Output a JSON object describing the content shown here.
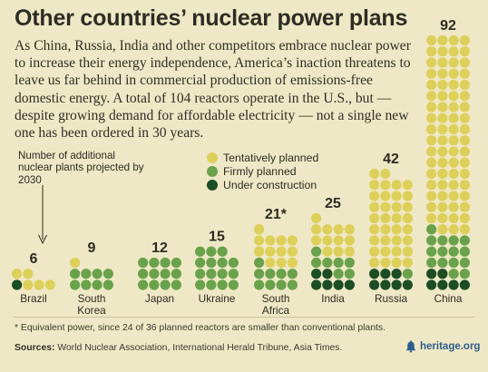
{
  "title": "Other countries’ nuclear power plans",
  "intro": "As China, Russia, India and other competitors embrace nuclear power to increase their energy independence, America’s inaction threatens to leave us far behind in commercial production of emissions-free domestic energy.  A total of 104 reactors operate in the U.S., but — despite growing demand for affordable electricity — not a single new one has been ordered in 30 years.",
  "axis_note": "Number of additional nuclear plants projected by 2030",
  "colors": {
    "tentative": "#ddd05a",
    "firm": "#6aa24c",
    "construction": "#1d4d25",
    "background": "#efe8c6"
  },
  "chart_data": {
    "type": "bar",
    "stacked": true,
    "unit": "plants",
    "categories": [
      "Brazil",
      "South Korea",
      "Japan",
      "Ukraine",
      "South Africa",
      "India",
      "Russia",
      "China"
    ],
    "category_lines": [
      [
        "Brazil"
      ],
      [
        "South",
        "Korea"
      ],
      [
        "Japan"
      ],
      [
        "Ukraine"
      ],
      [
        "South",
        "Africa"
      ],
      [
        "India"
      ],
      [
        "Russia"
      ],
      [
        "China"
      ]
    ],
    "totals": [
      "6",
      "9",
      "12",
      "15",
      "21*",
      "25",
      "42",
      "92"
    ],
    "series": [
      {
        "name": "Under construction",
        "color_key": "construction",
        "values": [
          1,
          0,
          0,
          0,
          0,
          6,
          7,
          6
        ]
      },
      {
        "name": "Firmly planned",
        "color_key": "firm",
        "values": [
          0,
          8,
          12,
          15,
          9,
          7,
          1,
          15
        ]
      },
      {
        "name": "Tentatively planned",
        "color_key": "tentative",
        "values": [
          5,
          1,
          0,
          0,
          12,
          12,
          34,
          71
        ]
      }
    ],
    "legend_order": [
      "Tentatively planned",
      "Firmly planned",
      "Under construction"
    ],
    "legend_placement": "top-center",
    "grid": false,
    "dot_columns": 4
  },
  "footnote": "* Equivalent power, since 24 of 36 planned reactors are smaller than conventional plants.",
  "sources_label": "Sources:",
  "sources_text": " World Nuclear Association, International Herald Tribune, Asia Times.",
  "brand": "heritage.org"
}
